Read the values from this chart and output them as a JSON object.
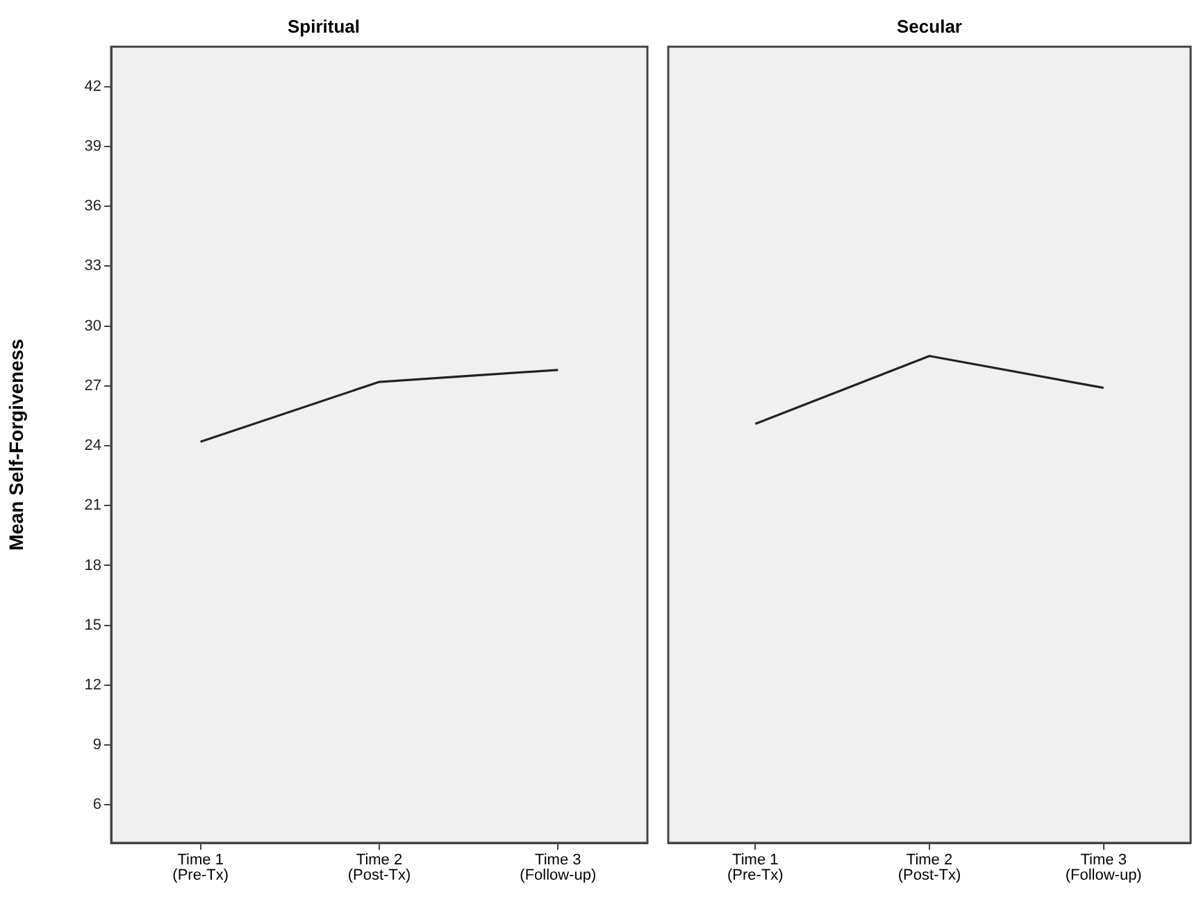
{
  "chart_data": [
    {
      "type": "line",
      "title": "Spiritual",
      "ylabel": "Mean Self-Forgiveness",
      "categories": [
        "Time 1\n(Pre-Tx)",
        "Time 2\n(Post-Tx)",
        "Time 3\n(Follow-up)"
      ],
      "values": [
        24.2,
        27.2,
        27.8
      ],
      "color": "#222222",
      "marker": "none",
      "line_style": "solid",
      "grid": false,
      "ylim": [
        4.1,
        44
      ],
      "yticks": [
        6,
        9,
        12,
        15,
        18,
        21,
        24,
        27,
        30,
        33,
        36,
        39,
        42
      ]
    },
    {
      "type": "line",
      "title": "Secular",
      "categories": [
        "Time 1\n(Pre-Tx)",
        "Time 2\n(Post-Tx)",
        "Time 3\n(Follow-up)"
      ],
      "values": [
        25.1,
        28.5,
        26.9
      ],
      "color": "#222222",
      "marker": "none",
      "line_style": "solid",
      "grid": false,
      "ylim": [
        4.1,
        44
      ],
      "yticks": [
        6,
        9,
        12,
        15,
        18,
        21,
        24,
        27,
        30,
        33,
        36,
        39,
        42
      ],
      "tick_labels": "x"
    }
  ]
}
